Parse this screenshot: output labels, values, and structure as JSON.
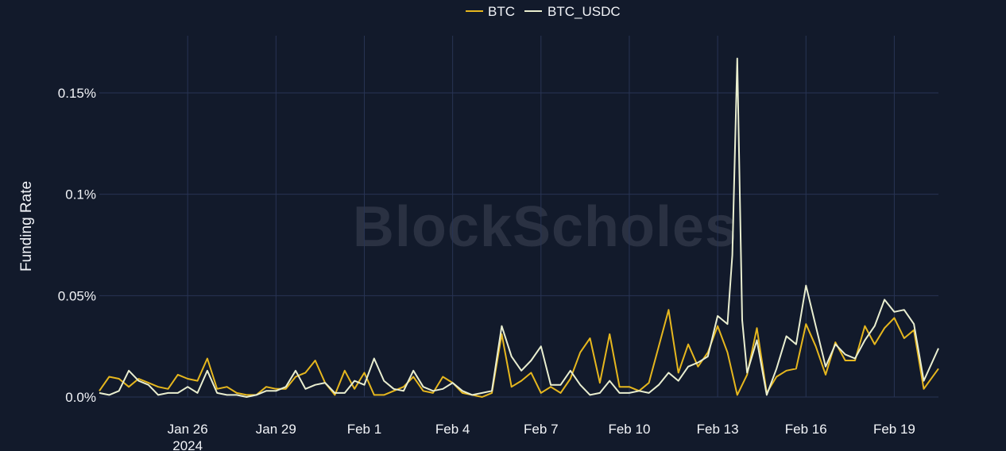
{
  "chart_data": {
    "type": "line",
    "title": "",
    "ylabel": "Funding Rate",
    "xlabel": "",
    "watermark": "BlockScholes",
    "x_start": "2024-01-23",
    "x_end": "2024-02-20",
    "ylim": [
      0,
      0.0017
    ],
    "y_ticks": [
      {
        "value": 0,
        "label": "0.0%"
      },
      {
        "value": 0.0005,
        "label": "0.05%"
      },
      {
        "value": 0.001,
        "label": "0.1%"
      },
      {
        "value": 0.0015,
        "label": "0.15%"
      }
    ],
    "x_ticks": [
      {
        "date": "2024-01-26",
        "label": "Jan 26",
        "sublabel": "2024"
      },
      {
        "date": "2024-01-29",
        "label": "Jan 29",
        "sublabel": ""
      },
      {
        "date": "2024-02-01",
        "label": "Feb 1",
        "sublabel": ""
      },
      {
        "date": "2024-02-04",
        "label": "Feb 4",
        "sublabel": ""
      },
      {
        "date": "2024-02-07",
        "label": "Feb 7",
        "sublabel": ""
      },
      {
        "date": "2024-02-10",
        "label": "Feb 10",
        "sublabel": ""
      },
      {
        "date": "2024-02-13",
        "label": "Feb 13",
        "sublabel": ""
      },
      {
        "date": "2024-02-16",
        "label": "Feb 16",
        "sublabel": ""
      },
      {
        "date": "2024-02-19",
        "label": "Feb 19",
        "sublabel": ""
      }
    ],
    "grid": true,
    "legend_position": "top-center",
    "series": [
      {
        "name": "BTC",
        "color": "#e6b71e",
        "points": [
          [
            "2024-01-23T00:00",
            3e-05
          ],
          [
            "2024-01-23T08:00",
            0.0001
          ],
          [
            "2024-01-23T16:00",
            9e-05
          ],
          [
            "2024-01-24T00:00",
            5e-05
          ],
          [
            "2024-01-24T08:00",
            9e-05
          ],
          [
            "2024-01-24T16:00",
            7e-05
          ],
          [
            "2024-01-25T00:00",
            5e-05
          ],
          [
            "2024-01-25T08:00",
            4e-05
          ],
          [
            "2024-01-25T16:00",
            0.00011
          ],
          [
            "2024-01-26T00:00",
            9e-05
          ],
          [
            "2024-01-26T08:00",
            8e-05
          ],
          [
            "2024-01-26T16:00",
            0.00019
          ],
          [
            "2024-01-27T00:00",
            4e-05
          ],
          [
            "2024-01-27T08:00",
            5e-05
          ],
          [
            "2024-01-27T16:00",
            2e-05
          ],
          [
            "2024-01-28T00:00",
            1e-05
          ],
          [
            "2024-01-28T08:00",
            1e-05
          ],
          [
            "2024-01-28T16:00",
            5e-05
          ],
          [
            "2024-01-29T00:00",
            4e-05
          ],
          [
            "2024-01-29T08:00",
            4e-05
          ],
          [
            "2024-01-29T16:00",
            0.0001
          ],
          [
            "2024-01-30T00:00",
            0.00012
          ],
          [
            "2024-01-30T08:00",
            0.00018
          ],
          [
            "2024-01-30T16:00",
            7e-05
          ],
          [
            "2024-01-31T00:00",
            1e-05
          ],
          [
            "2024-01-31T08:00",
            0.00013
          ],
          [
            "2024-01-31T16:00",
            4e-05
          ],
          [
            "2024-02-01T00:00",
            0.00012
          ],
          [
            "2024-02-01T08:00",
            1e-05
          ],
          [
            "2024-02-01T16:00",
            1e-05
          ],
          [
            "2024-02-02T00:00",
            3e-05
          ],
          [
            "2024-02-02T08:00",
            5e-05
          ],
          [
            "2024-02-02T16:00",
            0.0001
          ],
          [
            "2024-02-03T00:00",
            3e-05
          ],
          [
            "2024-02-03T08:00",
            2e-05
          ],
          [
            "2024-02-03T16:00",
            0.0001
          ],
          [
            "2024-02-04T00:00",
            7e-05
          ],
          [
            "2024-02-04T08:00",
            2e-05
          ],
          [
            "2024-02-04T16:00",
            1e-05
          ],
          [
            "2024-02-05T00:00",
            0
          ],
          [
            "2024-02-05T08:00",
            2e-05
          ],
          [
            "2024-02-05T16:00",
            0.00031
          ],
          [
            "2024-02-06T00:00",
            5e-05
          ],
          [
            "2024-02-06T08:00",
            8e-05
          ],
          [
            "2024-02-06T16:00",
            0.00012
          ],
          [
            "2024-02-07T00:00",
            2e-05
          ],
          [
            "2024-02-07T08:00",
            5e-05
          ],
          [
            "2024-02-07T16:00",
            2e-05
          ],
          [
            "2024-02-08T00:00",
            9e-05
          ],
          [
            "2024-02-08T08:00",
            0.00022
          ],
          [
            "2024-02-08T16:00",
            0.00029
          ],
          [
            "2024-02-09T00:00",
            7e-05
          ],
          [
            "2024-02-09T08:00",
            0.00031
          ],
          [
            "2024-02-09T16:00",
            5e-05
          ],
          [
            "2024-02-10T00:00",
            5e-05
          ],
          [
            "2024-02-10T08:00",
            3e-05
          ],
          [
            "2024-02-10T16:00",
            7e-05
          ],
          [
            "2024-02-11T00:00",
            0.00025
          ],
          [
            "2024-02-11T08:00",
            0.00043
          ],
          [
            "2024-02-11T16:00",
            0.00012
          ],
          [
            "2024-02-12T00:00",
            0.00026
          ],
          [
            "2024-02-12T08:00",
            0.00015
          ],
          [
            "2024-02-12T16:00",
            0.00022
          ],
          [
            "2024-02-13T00:00",
            0.00035
          ],
          [
            "2024-02-13T08:00",
            0.00022
          ],
          [
            "2024-02-13T16:00",
            1e-05
          ],
          [
            "2024-02-14T00:00",
            0.00011
          ],
          [
            "2024-02-14T08:00",
            0.00034
          ],
          [
            "2024-02-14T16:00",
            2e-05
          ],
          [
            "2024-02-15T00:00",
            0.0001
          ],
          [
            "2024-02-15T08:00",
            0.00013
          ],
          [
            "2024-02-15T16:00",
            0.00014
          ],
          [
            "2024-02-16T00:00",
            0.00036
          ],
          [
            "2024-02-16T08:00",
            0.00025
          ],
          [
            "2024-02-16T16:00",
            0.00011
          ],
          [
            "2024-02-17T00:00",
            0.00027
          ],
          [
            "2024-02-17T08:00",
            0.00018
          ],
          [
            "2024-02-17T16:00",
            0.00018
          ],
          [
            "2024-02-18T00:00",
            0.00035
          ],
          [
            "2024-02-18T08:00",
            0.00026
          ],
          [
            "2024-02-18T16:00",
            0.00034
          ],
          [
            "2024-02-19T00:00",
            0.00039
          ],
          [
            "2024-02-19T08:00",
            0.00029
          ],
          [
            "2024-02-19T16:00",
            0.00033
          ],
          [
            "2024-02-20T00:00",
            4e-05
          ],
          [
            "2024-02-20T12:00",
            0.00014
          ]
        ]
      },
      {
        "name": "BTC_USDC",
        "color": "#e9eed0",
        "points": [
          [
            "2024-01-23T00:00",
            2e-05
          ],
          [
            "2024-01-23T08:00",
            1e-05
          ],
          [
            "2024-01-23T16:00",
            3e-05
          ],
          [
            "2024-01-24T00:00",
            0.00013
          ],
          [
            "2024-01-24T08:00",
            8e-05
          ],
          [
            "2024-01-24T16:00",
            6e-05
          ],
          [
            "2024-01-25T00:00",
            1e-05
          ],
          [
            "2024-01-25T08:00",
            2e-05
          ],
          [
            "2024-01-25T16:00",
            2e-05
          ],
          [
            "2024-01-26T00:00",
            5e-05
          ],
          [
            "2024-01-26T08:00",
            2e-05
          ],
          [
            "2024-01-26T16:00",
            0.00013
          ],
          [
            "2024-01-27T00:00",
            2e-05
          ],
          [
            "2024-01-27T08:00",
            1e-05
          ],
          [
            "2024-01-27T16:00",
            1e-05
          ],
          [
            "2024-01-28T00:00",
            0
          ],
          [
            "2024-01-28T08:00",
            1e-05
          ],
          [
            "2024-01-28T16:00",
            3e-05
          ],
          [
            "2024-01-29T00:00",
            3e-05
          ],
          [
            "2024-01-29T08:00",
            5e-05
          ],
          [
            "2024-01-29T16:00",
            0.00013
          ],
          [
            "2024-01-30T00:00",
            4e-05
          ],
          [
            "2024-01-30T08:00",
            6e-05
          ],
          [
            "2024-01-30T16:00",
            7e-05
          ],
          [
            "2024-01-31T00:00",
            2e-05
          ],
          [
            "2024-01-31T08:00",
            2e-05
          ],
          [
            "2024-01-31T16:00",
            8e-05
          ],
          [
            "2024-02-01T00:00",
            6e-05
          ],
          [
            "2024-02-01T08:00",
            0.00019
          ],
          [
            "2024-02-01T16:00",
            8e-05
          ],
          [
            "2024-02-02T00:00",
            4e-05
          ],
          [
            "2024-02-02T08:00",
            3e-05
          ],
          [
            "2024-02-02T16:00",
            0.00013
          ],
          [
            "2024-02-03T00:00",
            5e-05
          ],
          [
            "2024-02-03T08:00",
            3e-05
          ],
          [
            "2024-02-03T16:00",
            4e-05
          ],
          [
            "2024-02-04T00:00",
            7e-05
          ],
          [
            "2024-02-04T08:00",
            3e-05
          ],
          [
            "2024-02-04T16:00",
            1e-05
          ],
          [
            "2024-02-05T00:00",
            2e-05
          ],
          [
            "2024-02-05T08:00",
            3e-05
          ],
          [
            "2024-02-05T16:00",
            0.00035
          ],
          [
            "2024-02-06T00:00",
            0.0002
          ],
          [
            "2024-02-06T08:00",
            0.00013
          ],
          [
            "2024-02-06T16:00",
            0.00018
          ],
          [
            "2024-02-07T00:00",
            0.00025
          ],
          [
            "2024-02-07T08:00",
            6e-05
          ],
          [
            "2024-02-07T16:00",
            6e-05
          ],
          [
            "2024-02-08T00:00",
            0.00013
          ],
          [
            "2024-02-08T08:00",
            6e-05
          ],
          [
            "2024-02-08T16:00",
            1e-05
          ],
          [
            "2024-02-09T00:00",
            2e-05
          ],
          [
            "2024-02-09T08:00",
            8e-05
          ],
          [
            "2024-02-09T16:00",
            2e-05
          ],
          [
            "2024-02-10T00:00",
            2e-05
          ],
          [
            "2024-02-10T08:00",
            3e-05
          ],
          [
            "2024-02-10T16:00",
            2e-05
          ],
          [
            "2024-02-11T00:00",
            6e-05
          ],
          [
            "2024-02-11T08:00",
            0.00012
          ],
          [
            "2024-02-11T16:00",
            8e-05
          ],
          [
            "2024-02-12T00:00",
            0.00015
          ],
          [
            "2024-02-12T08:00",
            0.00017
          ],
          [
            "2024-02-12T16:00",
            0.0002
          ],
          [
            "2024-02-13T00:00",
            0.0004
          ],
          [
            "2024-02-13T08:00",
            0.00036
          ],
          [
            "2024-02-13T12:00",
            0.0007
          ],
          [
            "2024-02-13T16:00",
            0.00167
          ],
          [
            "2024-02-13T20:00",
            0.00038
          ],
          [
            "2024-02-14T00:00",
            0.00012
          ],
          [
            "2024-02-14T08:00",
            0.00028
          ],
          [
            "2024-02-14T16:00",
            1e-05
          ],
          [
            "2024-02-15T00:00",
            0.00014
          ],
          [
            "2024-02-15T08:00",
            0.0003
          ],
          [
            "2024-02-15T16:00",
            0.00026
          ],
          [
            "2024-02-16T00:00",
            0.00055
          ],
          [
            "2024-02-16T08:00",
            0.00035
          ],
          [
            "2024-02-16T16:00",
            0.00015
          ],
          [
            "2024-02-17T00:00",
            0.00026
          ],
          [
            "2024-02-17T08:00",
            0.00021
          ],
          [
            "2024-02-17T16:00",
            0.00019
          ],
          [
            "2024-02-18T00:00",
            0.00028
          ],
          [
            "2024-02-18T08:00",
            0.00035
          ],
          [
            "2024-02-18T16:00",
            0.00048
          ],
          [
            "2024-02-19T00:00",
            0.00042
          ],
          [
            "2024-02-19T08:00",
            0.00043
          ],
          [
            "2024-02-19T16:00",
            0.00036
          ],
          [
            "2024-02-20T00:00",
            8e-05
          ],
          [
            "2024-02-20T12:00",
            0.00024
          ]
        ]
      }
    ]
  }
}
